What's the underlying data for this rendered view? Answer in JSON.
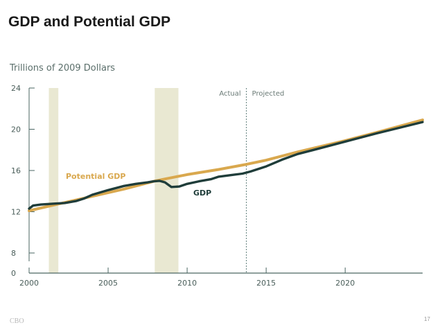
{
  "slide": {
    "title": "GDP and Potential GDP",
    "footer_left": "CBO",
    "page_number": "17"
  },
  "chart_data": {
    "type": "line",
    "ylabel": "Trillions of 2009 Dollars",
    "xlim": [
      2000,
      2024.9
    ],
    "ylim": [
      0,
      24
    ],
    "y_axis_break": [
      0,
      8
    ],
    "x_ticks": [
      "2000",
      "2005",
      "2010",
      "2015",
      "2020"
    ],
    "y_ticks": [
      "0",
      "8",
      "12",
      "16",
      "20",
      "24"
    ],
    "recessions": [
      [
        2001.25,
        2001.85
      ],
      [
        2007.95,
        2009.45
      ]
    ],
    "divider": {
      "x": 2013.75,
      "left_label": "Actual",
      "right_label": "Projected"
    },
    "series": [
      {
        "name": "Potential GDP",
        "color": "#d9a84e",
        "x": [
          2000,
          2002,
          2004,
          2006,
          2008,
          2010,
          2012,
          2013.75,
          2015,
          2017,
          2020,
          2022,
          2024.9
        ],
        "y": [
          12.1,
          12.8,
          13.5,
          14.2,
          15.0,
          15.6,
          16.1,
          16.6,
          17.0,
          17.8,
          18.9,
          19.7,
          20.9
        ]
      },
      {
        "name": "GDP",
        "color": "#1f3d3a",
        "x": [
          2000,
          2000.25,
          2000.75,
          2001.25,
          2001.75,
          2002.25,
          2003,
          2003.5,
          2004,
          2005,
          2006,
          2006.75,
          2007.5,
          2007.9,
          2008.25,
          2008.6,
          2009,
          2009.5,
          2010,
          2010.75,
          2011.5,
          2012,
          2012.75,
          2013.5,
          2014,
          2015,
          2016,
          2017,
          2018,
          2020,
          2022,
          2024.9
        ],
        "y": [
          12.3,
          12.6,
          12.7,
          12.75,
          12.8,
          12.85,
          13.05,
          13.3,
          13.65,
          14.1,
          14.5,
          14.7,
          14.85,
          14.95,
          15.0,
          14.85,
          14.4,
          14.45,
          14.7,
          14.95,
          15.15,
          15.4,
          15.55,
          15.7,
          15.9,
          16.4,
          17.05,
          17.6,
          18.0,
          18.8,
          19.6,
          20.7
        ]
      }
    ]
  }
}
